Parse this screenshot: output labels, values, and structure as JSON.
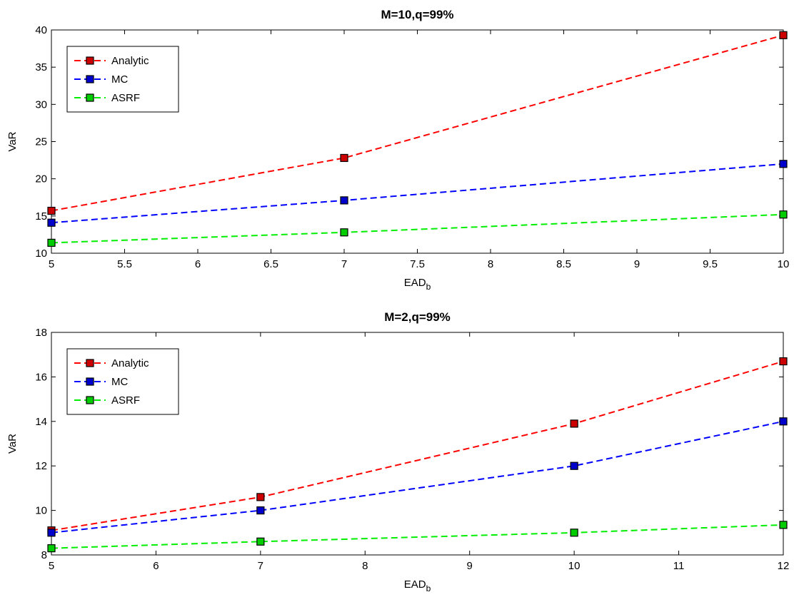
{
  "chart_data": [
    {
      "type": "line",
      "title": "M=10,q=99%",
      "xlabel": "EAD",
      "xlabel_sub": "b",
      "ylabel": "VaR",
      "xlim": [
        5,
        10
      ],
      "ylim": [
        10,
        40
      ],
      "xticks": [
        "5",
        "5.5",
        "6",
        "6.5",
        "7",
        "7.5",
        "8",
        "8.5",
        "9",
        "9.5",
        "10"
      ],
      "yticks": [
        "10",
        "15",
        "20",
        "25",
        "30",
        "35",
        "40"
      ],
      "legend_position": "top-left",
      "grid": false,
      "series": [
        {
          "name": "Analytic",
          "color": "#ff0000",
          "marker_fill": "#cc0000",
          "x": [
            5,
            7,
            10
          ],
          "y": [
            15.7,
            22.8,
            39.3
          ]
        },
        {
          "name": "MC",
          "color": "#0000ff",
          "marker_fill": "#0000cc",
          "x": [
            5,
            7,
            10
          ],
          "y": [
            14.1,
            17.1,
            22.0
          ]
        },
        {
          "name": "ASRF",
          "color": "#00ee00",
          "marker_fill": "#00cc00",
          "x": [
            5,
            7,
            10
          ],
          "y": [
            11.4,
            12.8,
            15.2
          ]
        }
      ]
    },
    {
      "type": "line",
      "title": "M=2,q=99%",
      "xlabel": "EAD",
      "xlabel_sub": "b",
      "ylabel": "VaR",
      "xlim": [
        5,
        12
      ],
      "ylim": [
        8,
        18
      ],
      "xticks": [
        "5",
        "6",
        "7",
        "8",
        "9",
        "10",
        "11",
        "12"
      ],
      "yticks": [
        "8",
        "10",
        "12",
        "14",
        "16",
        "18"
      ],
      "legend_position": "top-left",
      "grid": false,
      "series": [
        {
          "name": "Analytic",
          "color": "#ff0000",
          "marker_fill": "#cc0000",
          "x": [
            5,
            7,
            10,
            12
          ],
          "y": [
            9.1,
            10.6,
            13.9,
            16.7
          ]
        },
        {
          "name": "MC",
          "color": "#0000ff",
          "marker_fill": "#0000cc",
          "x": [
            5,
            7,
            10,
            12
          ],
          "y": [
            9.0,
            10.0,
            12.0,
            14.0
          ]
        },
        {
          "name": "ASRF",
          "color": "#00ee00",
          "marker_fill": "#00cc00",
          "x": [
            5,
            7,
            10,
            12
          ],
          "y": [
            8.3,
            8.6,
            9.0,
            9.35
          ]
        }
      ]
    }
  ]
}
